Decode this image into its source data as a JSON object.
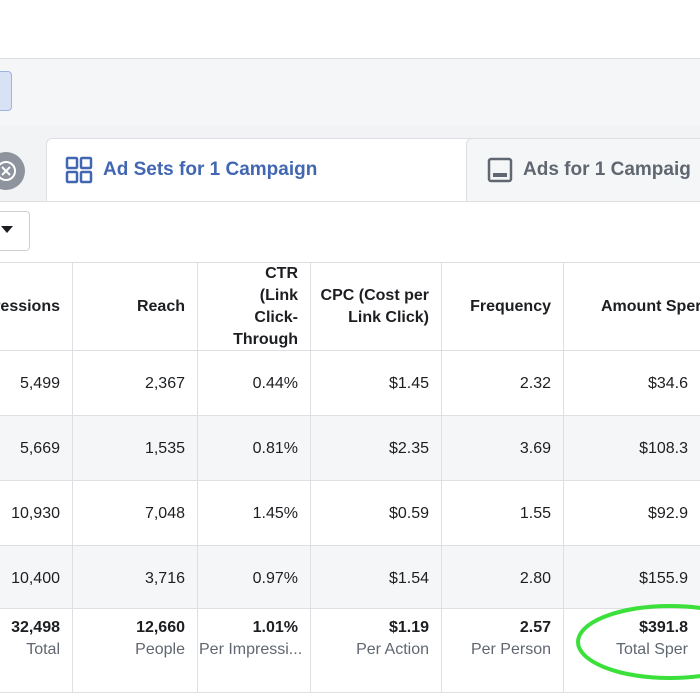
{
  "tabs": {
    "active": "Ad Sets for 1 Campaign",
    "other": "Ads for 1 Campaig"
  },
  "table": {
    "columns": [
      "ressions",
      "Reach",
      "CTR (Link Click-Through",
      "CPC (Cost per Link Click)",
      "Frequency",
      "Amount Sper"
    ],
    "rows": [
      [
        "5,499",
        "2,367",
        "0.44%",
        "$1.45",
        "2.32",
        "$34.6"
      ],
      [
        "5,669",
        "1,535",
        "0.81%",
        "$2.35",
        "3.69",
        "$108.3"
      ],
      [
        "10,930",
        "7,048",
        "1.45%",
        "$0.59",
        "1.55",
        "$92.9"
      ],
      [
        "10,400",
        "3,716",
        "0.97%",
        "$1.54",
        "2.80",
        "$155.9"
      ]
    ],
    "totals": [
      {
        "value": "32,498",
        "label": "Total"
      },
      {
        "value": "12,660",
        "label": "People"
      },
      {
        "value": "1.01%",
        "label": "Per Impressi..."
      },
      {
        "value": "$1.19",
        "label": "Per Action"
      },
      {
        "value": "2.57",
        "label": "Per Person"
      },
      {
        "value": "$391.8",
        "label": "Total Sper"
      }
    ]
  }
}
